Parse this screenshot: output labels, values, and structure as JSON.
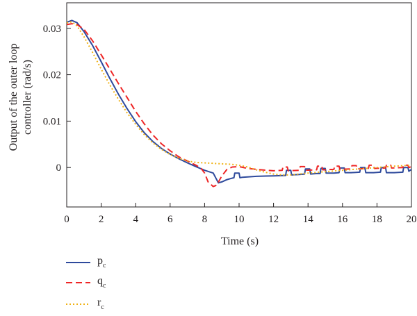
{
  "chart_data": {
    "type": "line",
    "xlabel": "Time (s)",
    "ylabel_lines": [
      "Output of the outer loop",
      "controller (rad/s)"
    ],
    "xlim": [
      0,
      20
    ],
    "ylim": [
      -0.0085,
      0.0355
    ],
    "x_ticks": [
      0,
      2,
      4,
      6,
      8,
      10,
      12,
      14,
      16,
      18,
      20
    ],
    "y_ticks": [
      0,
      0.01,
      0.02,
      0.03
    ],
    "y_tick_labels": [
      "0",
      "0.01",
      "0.02",
      "0.03"
    ],
    "grid": false,
    "legend_position": "bottom-left, below the plot",
    "series": [
      {
        "name": "p",
        "subscript": "c",
        "color": "#2e4a9c",
        "style": "solid",
        "x": [
          0,
          0.3,
          0.6,
          1.0,
          1.5,
          2.0,
          2.5,
          3.0,
          3.5,
          4.0,
          4.5,
          5.0,
          5.5,
          6.0,
          6.5,
          7.0,
          7.5,
          8.0,
          8.5,
          8.8,
          9.0,
          9.3,
          9.5,
          9.7,
          9.75,
          10.0,
          10.05,
          10.2,
          11.0,
          12.0,
          12.7,
          12.75,
          13.0,
          13.05,
          13.5,
          13.8,
          13.85,
          14.1,
          14.15,
          14.5,
          14.7,
          14.75,
          15.0,
          15.05,
          15.5,
          15.8,
          15.85,
          16.1,
          16.15,
          16.5,
          17.0,
          17.05,
          17.3,
          17.35,
          17.8,
          18.2,
          18.25,
          18.5,
          18.55,
          19.0,
          19.5,
          19.55,
          19.8,
          19.85,
          20.0
        ],
        "y": [
          0.0313,
          0.0317,
          0.0312,
          0.0293,
          0.0263,
          0.0228,
          0.0192,
          0.0158,
          0.0127,
          0.0099,
          0.0075,
          0.0056,
          0.0041,
          0.0029,
          0.0019,
          0.001,
          0.0002,
          -0.0006,
          -0.0012,
          -0.0033,
          -0.0031,
          -0.0026,
          -0.0024,
          -0.0022,
          -0.0012,
          -0.0012,
          -0.0022,
          -0.0021,
          -0.0019,
          -0.0018,
          -0.0017,
          -0.0006,
          -0.0006,
          -0.0016,
          -0.0015,
          -0.0014,
          -0.0003,
          -0.0003,
          -0.0014,
          -0.0013,
          -0.0013,
          -0.0002,
          -0.0002,
          -0.0012,
          -0.0012,
          -0.0011,
          -0.0001,
          -0.0001,
          -0.0011,
          -0.0011,
          -0.001,
          0.0,
          0.0,
          -0.0011,
          -0.0011,
          -0.001,
          0.0,
          0.0,
          -0.0011,
          -0.0011,
          -0.001,
          0.0,
          0.0,
          -0.0008,
          -0.0004
        ]
      },
      {
        "name": "q",
        "subscript": "c",
        "color": "#ee2626",
        "style": "dashed",
        "x": [
          0,
          0.3,
          0.6,
          1.0,
          1.5,
          2.0,
          2.5,
          3.0,
          3.5,
          4.0,
          4.5,
          5.0,
          5.5,
          6.0,
          6.5,
          7.0,
          7.5,
          7.8,
          8.0,
          8.2,
          8.5,
          8.7,
          9.0,
          9.3,
          9.6,
          10.0,
          10.5,
          11.0,
          12.0,
          12.5,
          12.55,
          12.8,
          12.85,
          13.5,
          13.55,
          13.8,
          13.85,
          14.5,
          14.55,
          14.8,
          14.85,
          15.5,
          15.55,
          15.8,
          15.85,
          16.5,
          16.55,
          16.8,
          16.85,
          17.5,
          17.55,
          17.8,
          17.85,
          18.5,
          18.55,
          18.8,
          18.85,
          19.5,
          19.55,
          19.8,
          19.85,
          20.0
        ],
        "y": [
          0.0308,
          0.031,
          0.0308,
          0.0298,
          0.0273,
          0.0243,
          0.0212,
          0.0181,
          0.0151,
          0.0121,
          0.0094,
          0.007,
          0.0051,
          0.0036,
          0.0023,
          0.0014,
          0.0005,
          -0.0002,
          -0.0012,
          -0.0031,
          -0.0041,
          -0.0038,
          -0.0018,
          -0.0004,
          0.0001,
          0.0002,
          -0.0002,
          -0.0004,
          -0.0007,
          -0.0006,
          0.0001,
          0.0001,
          -0.0007,
          -0.0006,
          0.0002,
          0.0002,
          -0.0006,
          -0.0005,
          0.0003,
          0.0003,
          -0.0005,
          -0.0004,
          0.0003,
          0.0003,
          -0.0004,
          -0.0003,
          0.0004,
          0.0004,
          -0.0003,
          -0.0002,
          0.0005,
          0.0005,
          -0.0002,
          -0.0001,
          0.0005,
          0.0005,
          -0.0001,
          0.0,
          0.0005,
          0.0005,
          0.0,
          0.0002
        ]
      },
      {
        "name": "r",
        "subscript": "c",
        "color": "#f0b215",
        "style": "dotted",
        "x": [
          0,
          0.3,
          0.6,
          1.0,
          1.5,
          2.0,
          2.5,
          3.0,
          3.5,
          4.0,
          4.5,
          5.0,
          5.5,
          6.0,
          6.5,
          7.0,
          7.5,
          8.0,
          8.5,
          9.0,
          9.5,
          10.0,
          10.5,
          11.0,
          11.5,
          12.0,
          12.5,
          13.0,
          13.5,
          14.0,
          15.0,
          16.0,
          17.0,
          18.0,
          19.0,
          20.0
        ],
        "y": [
          0.0312,
          0.0314,
          0.0305,
          0.0282,
          0.0248,
          0.0212,
          0.0178,
          0.0147,
          0.0118,
          0.0093,
          0.0071,
          0.0053,
          0.0039,
          0.0028,
          0.002,
          0.0014,
          0.0011,
          0.001,
          0.0009,
          0.0008,
          0.0007,
          0.0005,
          0.0001,
          -0.0005,
          -0.001,
          -0.0014,
          -0.0016,
          -0.0016,
          -0.0014,
          -0.0012,
          -0.0009,
          -0.0006,
          -0.0003,
          0.0,
          0.0003,
          0.0005
        ]
      }
    ]
  }
}
